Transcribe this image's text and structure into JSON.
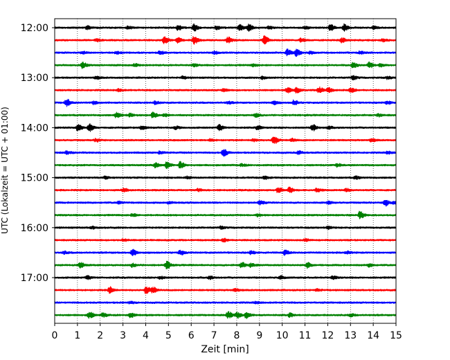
{
  "chart_data": {
    "type": "line",
    "title": "",
    "xlabel": "Zeit  [min]",
    "ylabel": "UTC (Lokalzeit = UTC + 01:00)",
    "xlim": [
      0,
      15
    ],
    "x_ticks": [
      "0",
      "1",
      "2",
      "3",
      "4",
      "5",
      "6",
      "7",
      "8",
      "9",
      "10",
      "11",
      "12",
      "13",
      "14",
      "15"
    ],
    "y_ticks": [
      "12:00",
      "13:00",
      "14:00",
      "15:00",
      "16:00",
      "17:00"
    ],
    "grid": "vertical dotted lines at each minute",
    "legend": "none",
    "trace_interval_min": 15,
    "trace_color_cycle": [
      "#000000",
      "#ff0000",
      "#0000ff",
      "#008000"
    ],
    "series": [
      {
        "start": "12:00",
        "color": "#000000",
        "events": [
          [
            1.4,
            0.7
          ],
          [
            3.2,
            0.6
          ],
          [
            5.4,
            1.0
          ],
          [
            6.1,
            1.5
          ],
          [
            7.1,
            0.7
          ],
          [
            8.1,
            1.3
          ],
          [
            8.5,
            1.5
          ],
          [
            9.4,
            0.6
          ],
          [
            11.0,
            0.6
          ],
          [
            12.1,
            1.3
          ],
          [
            12.7,
            1.5
          ],
          [
            14.0,
            0.6
          ]
        ]
      },
      {
        "start": "12:15",
        "color": "#ff0000",
        "events": [
          [
            1.8,
            0.6
          ],
          [
            4.8,
            1.3
          ],
          [
            5.4,
            1.1
          ],
          [
            6.1,
            1.6
          ],
          [
            7.6,
            1.2
          ],
          [
            9.2,
            1.8
          ],
          [
            10.8,
            0.7
          ],
          [
            12.6,
            1.0
          ],
          [
            14.4,
            0.6
          ]
        ]
      },
      {
        "start": "12:30",
        "color": "#0000ff",
        "events": [
          [
            1.2,
            0.5
          ],
          [
            2.7,
            0.5
          ],
          [
            4.6,
            0.7
          ],
          [
            7.0,
            0.6
          ],
          [
            10.2,
            1.4
          ],
          [
            10.6,
            1.4
          ],
          [
            11.2,
            0.6
          ],
          [
            13.4,
            0.6
          ]
        ]
      },
      {
        "start": "12:45",
        "color": "#008000",
        "events": [
          [
            1.2,
            1.4
          ],
          [
            3.5,
            0.5
          ],
          [
            6.1,
            0.5
          ],
          [
            8.7,
            0.5
          ],
          [
            13.1,
            1.2
          ],
          [
            13.8,
            1.2
          ],
          [
            14.3,
            0.7
          ]
        ]
      },
      {
        "start": "13:00",
        "color": "#000000",
        "events": [
          [
            1.8,
            0.5
          ],
          [
            5.6,
            0.5
          ],
          [
            9.1,
            0.6
          ],
          [
            13.1,
            0.8
          ],
          [
            14.6,
            0.5
          ]
        ]
      },
      {
        "start": "13:15",
        "color": "#ff0000",
        "events": [
          [
            2.8,
            0.5
          ],
          [
            7.4,
            0.6
          ],
          [
            10.2,
            1.1
          ],
          [
            10.6,
            1.1
          ],
          [
            11.6,
            1.4
          ],
          [
            12.0,
            1.0
          ],
          [
            13.0,
            1.0
          ]
        ]
      },
      {
        "start": "13:30",
        "color": "#0000ff",
        "events": [
          [
            0.5,
            1.5
          ],
          [
            1.7,
            0.6
          ],
          [
            4.4,
            0.6
          ],
          [
            7.6,
            0.5
          ],
          [
            9.6,
            0.8
          ],
          [
            10.5,
            1.0
          ],
          [
            14.6,
            0.6
          ]
        ]
      },
      {
        "start": "13:45",
        "color": "#008000",
        "events": [
          [
            2.7,
            1.2
          ],
          [
            3.3,
            0.7
          ],
          [
            4.3,
            1.2
          ],
          [
            4.8,
            0.6
          ],
          [
            8.8,
            0.8
          ],
          [
            14.2,
            0.6
          ]
        ]
      },
      {
        "start": "14:00",
        "color": "#000000",
        "events": [
          [
            1.0,
            1.5
          ],
          [
            1.5,
            1.6
          ],
          [
            3.8,
            0.8
          ],
          [
            5.3,
            0.6
          ],
          [
            7.2,
            1.2
          ],
          [
            8.9,
            0.8
          ],
          [
            11.3,
            1.5
          ],
          [
            12.0,
            0.6
          ]
        ]
      },
      {
        "start": "14:15",
        "color": "#ff0000",
        "events": [
          [
            1.8,
            0.6
          ],
          [
            6.8,
            0.5
          ],
          [
            8.7,
            0.5
          ],
          [
            9.6,
            1.8
          ],
          [
            10.4,
            0.6
          ],
          [
            13.9,
            0.6
          ]
        ]
      },
      {
        "start": "14:30",
        "color": "#0000ff",
        "events": [
          [
            0.5,
            0.6
          ],
          [
            4.6,
            0.5
          ],
          [
            7.4,
            1.5
          ],
          [
            10.7,
            0.6
          ],
          [
            14.6,
            0.5
          ]
        ]
      },
      {
        "start": "14:45",
        "color": "#008000",
        "events": [
          [
            4.4,
            1.0
          ],
          [
            4.9,
            1.4
          ],
          [
            5.5,
            1.5
          ],
          [
            8.2,
            0.5
          ],
          [
            12.4,
            0.6
          ]
        ]
      },
      {
        "start": "15:00",
        "color": "#000000",
        "events": [
          [
            2.2,
            0.5
          ],
          [
            5.8,
            0.5
          ],
          [
            9.2,
            0.6
          ],
          [
            13.2,
            0.6
          ]
        ]
      },
      {
        "start": "15:15",
        "color": "#ff0000",
        "events": [
          [
            3.0,
            0.7
          ],
          [
            6.3,
            0.5
          ],
          [
            9.8,
            1.1
          ],
          [
            10.3,
            1.1
          ],
          [
            11.5,
            0.8
          ],
          [
            12.8,
            0.6
          ]
        ]
      },
      {
        "start": "15:30",
        "color": "#0000ff",
        "events": [
          [
            2.8,
            0.6
          ],
          [
            5.0,
            0.5
          ],
          [
            9.0,
            0.9
          ],
          [
            12.0,
            0.6
          ],
          [
            14.5,
            1.4
          ],
          [
            14.9,
            0.6
          ]
        ]
      },
      {
        "start": "15:45",
        "color": "#008000",
        "events": [
          [
            3.4,
            0.6
          ],
          [
            8.9,
            0.5
          ],
          [
            13.4,
            1.5
          ]
        ]
      },
      {
        "start": "16:00",
        "color": "#000000",
        "events": [
          [
            1.6,
            0.5
          ],
          [
            7.3,
            0.5
          ],
          [
            12.0,
            0.5
          ]
        ]
      },
      {
        "start": "16:15",
        "color": "#ff0000",
        "events": [
          [
            3.0,
            0.5
          ],
          [
            7.4,
            0.7
          ],
          [
            11.0,
            0.5
          ]
        ]
      },
      {
        "start": "16:30",
        "color": "#0000ff",
        "events": [
          [
            0.4,
            0.5
          ],
          [
            3.4,
            1.4
          ],
          [
            5.5,
            1.0
          ],
          [
            8.6,
            0.6
          ],
          [
            10.1,
            1.0
          ],
          [
            12.8,
            0.6
          ]
        ]
      },
      {
        "start": "16:45",
        "color": "#008000",
        "events": [
          [
            1.1,
            1.2
          ],
          [
            3.4,
            0.7
          ],
          [
            4.9,
            1.6
          ],
          [
            8.2,
            1.2
          ],
          [
            8.6,
            0.8
          ],
          [
            11.1,
            1.2
          ],
          [
            13.8,
            0.6
          ]
        ]
      },
      {
        "start": "17:00",
        "color": "#000000",
        "events": [
          [
            1.4,
            0.7
          ],
          [
            4.6,
            0.6
          ],
          [
            6.8,
            0.6
          ],
          [
            9.9,
            0.7
          ],
          [
            12.2,
            0.6
          ]
        ]
      },
      {
        "start": "17:15",
        "color": "#ff0000",
        "events": [
          [
            2.4,
            1.3
          ],
          [
            4.0,
            1.5
          ],
          [
            4.3,
            1.2
          ],
          [
            7.9,
            0.6
          ],
          [
            11.5,
            0.5
          ]
        ]
      },
      {
        "start": "17:30",
        "color": "#0000ff",
        "events": [
          [
            3.3,
            0.4
          ],
          [
            8.8,
            0.4
          ]
        ]
      },
      {
        "start": "17:45",
        "color": "#008000",
        "events": [
          [
            1.5,
            1.4
          ],
          [
            2.1,
            0.8
          ],
          [
            3.3,
            1.0
          ],
          [
            7.6,
            1.6
          ],
          [
            8.0,
            1.2
          ],
          [
            8.4,
            1.3
          ],
          [
            10.3,
            0.8
          ],
          [
            13.0,
            0.6
          ]
        ]
      }
    ]
  }
}
